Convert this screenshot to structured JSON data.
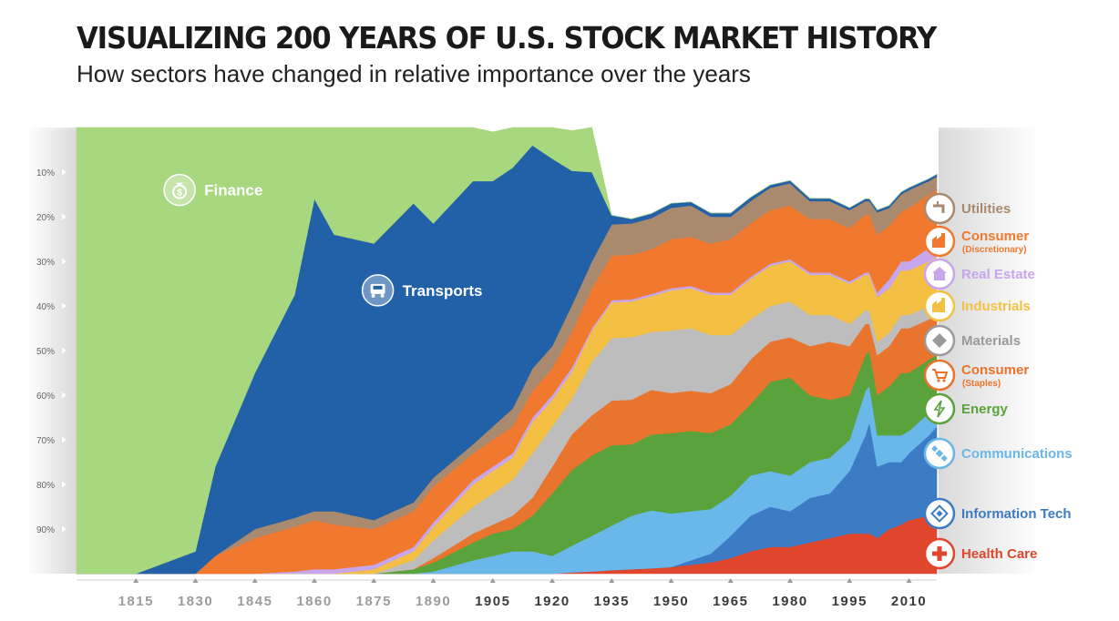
{
  "title": "VISUALIZING 200 YEARS OF U.S. STOCK MARKET HISTORY",
  "subtitle": "How sectors have changed in relative importance over the years",
  "chart_data": {
    "type": "area",
    "stacking": "100% stacked, bottom-to-top",
    "xlim": [
      1800,
      2017
    ],
    "ylim": [
      0,
      100
    ],
    "y_ticks": [
      "90%",
      "80%",
      "70%",
      "60%",
      "50%",
      "40%",
      "30%",
      "20%",
      "10%"
    ],
    "x_ticks": [
      "1815",
      "1830",
      "1845",
      "1860",
      "1875",
      "1890",
      "1905",
      "1920",
      "1935",
      "1950",
      "1965",
      "1980",
      "1995",
      "2010"
    ],
    "x": [
      1800,
      1815,
      1830,
      1835,
      1845,
      1855,
      1860,
      1865,
      1875,
      1885,
      1890,
      1900,
      1905,
      1910,
      1915,
      1920,
      1925,
      1930,
      1935,
      1940,
      1945,
      1950,
      1955,
      1960,
      1965,
      1970,
      1975,
      1980,
      1985,
      1990,
      1995,
      1999,
      2000,
      2002,
      2005,
      2008,
      2010,
      2015,
      2017
    ],
    "series": [
      {
        "name": "Health Care",
        "color": "#e0462c",
        "values": [
          0,
          0,
          0,
          0,
          0,
          0,
          0,
          0,
          0,
          0,
          0,
          0,
          0,
          0,
          0,
          0,
          0.3,
          0.5,
          0.8,
          1,
          1.2,
          1.5,
          2,
          2.5,
          3.5,
          5,
          6,
          6,
          7,
          8,
          9,
          9,
          9,
          8,
          10,
          11,
          12,
          13,
          14
        ]
      },
      {
        "name": "Information Tech",
        "color": "#3d7bc4",
        "values": [
          0,
          0,
          0,
          0,
          0,
          0,
          0,
          0,
          0,
          0,
          0,
          0,
          0,
          0,
          0,
          0,
          0,
          0,
          0,
          0,
          0,
          0,
          1,
          2,
          5,
          8,
          9,
          8,
          10,
          10,
          14,
          22,
          25,
          16,
          15,
          14,
          15,
          18,
          19
        ]
      },
      {
        "name": "Communications",
        "color": "#6ab7ea",
        "values": [
          0,
          0,
          0,
          0,
          0,
          0,
          0,
          0,
          0,
          0,
          0.5,
          3,
          4,
          5,
          5,
          4,
          6,
          8,
          10,
          12,
          13,
          12,
          11,
          10,
          9,
          9,
          8,
          8,
          8,
          8,
          7,
          10,
          8,
          7,
          6,
          6,
          5,
          5,
          5
        ]
      },
      {
        "name": "Energy",
        "color": "#5aa33c",
        "values": [
          0,
          0,
          0,
          0,
          0,
          0,
          0,
          0,
          0,
          1,
          2,
          4,
          5,
          5,
          8,
          14,
          17,
          18,
          18,
          16,
          17,
          18,
          18,
          17,
          16,
          16,
          20,
          22,
          15,
          13,
          10,
          8,
          8,
          9,
          11,
          14,
          13,
          12,
          11
        ]
      },
      {
        "name": "Consumer (Staples)",
        "color": "#e9742d",
        "values": [
          0,
          0,
          0,
          0,
          0,
          0,
          0,
          0,
          0,
          0,
          1,
          2,
          2,
          3,
          4,
          6,
          8,
          9,
          10,
          10,
          10,
          9,
          9,
          9,
          9,
          10,
          9,
          9,
          11,
          13,
          11,
          7,
          6,
          9,
          9,
          10,
          10,
          9,
          9
        ]
      },
      {
        "name": "Materials",
        "color": "#bdbdbd",
        "values": [
          0,
          0,
          0,
          0,
          0,
          0,
          0,
          0,
          0,
          2,
          4,
          6,
          7,
          8,
          10,
          9,
          8,
          12,
          14,
          14,
          13,
          14,
          14,
          13,
          11,
          9,
          8,
          8,
          7,
          6,
          5,
          3,
          3,
          3,
          3,
          3,
          3,
          3,
          3
        ]
      },
      {
        "name": "Industrials",
        "color": "#f4c043",
        "values": [
          0,
          0,
          0,
          0,
          0,
          0,
          0,
          0,
          1,
          2,
          3,
          5,
          5,
          5,
          7,
          6,
          6,
          7,
          8,
          8,
          8,
          9,
          9,
          9,
          9,
          9,
          9,
          9,
          9,
          9,
          9,
          8,
          8,
          10,
          10,
          10,
          10,
          10,
          10
        ]
      },
      {
        "name": "Real Estate",
        "color": "#c8a6ec",
        "values": [
          0,
          0,
          0,
          0,
          0,
          0.5,
          1,
          1,
          1,
          1,
          1,
          1,
          1,
          1,
          1,
          1,
          1,
          0.5,
          0.5,
          0.5,
          0.5,
          0.5,
          0.5,
          0.5,
          0.5,
          0.5,
          0.5,
          0.5,
          0.5,
          0.5,
          0.5,
          0.5,
          0.5,
          1,
          2,
          2,
          2,
          3,
          3
        ]
      },
      {
        "name": "Consumer (Discretionary)",
        "color": "#f0792f",
        "values": [
          0,
          0,
          0,
          4,
          8,
          10,
          11,
          10,
          8,
          8,
          8,
          6,
          6,
          6,
          6,
          6,
          8,
          9,
          10,
          10,
          10,
          11,
          11,
          11,
          12,
          12,
          12,
          12,
          12,
          12,
          12,
          13,
          13,
          13,
          12,
          11,
          12,
          12,
          12
        ]
      },
      {
        "name": "Utilities",
        "color": "#a98a6e",
        "values": [
          0,
          0,
          0,
          0,
          2,
          2,
          2,
          3,
          2,
          2,
          2,
          2,
          3,
          4,
          5,
          5,
          6,
          6,
          7,
          7,
          7,
          7,
          7,
          6,
          5,
          5,
          5,
          5,
          4,
          4,
          4,
          3,
          3,
          5,
          4,
          4,
          4,
          3,
          3
        ]
      },
      {
        "name": "Transports",
        "color": "#2260a8",
        "values": [
          0,
          0,
          5,
          20,
          35,
          50,
          70,
          62,
          62,
          67,
          57,
          59,
          55,
          54,
          50,
          42,
          30,
          20,
          2,
          1,
          1,
          1,
          0.8,
          0.8,
          0.8,
          0.8,
          0.6,
          0.6,
          0.6,
          0.6,
          0.5,
          0.5,
          0.5,
          0.5,
          0.5,
          0.5,
          0.5,
          0.5,
          0.5
        ]
      },
      {
        "name": "Finance",
        "color": "#a7d77e",
        "values": [
          100,
          100,
          95,
          76,
          55,
          37.5,
          16,
          24,
          26,
          17,
          21.5,
          12,
          11,
          9,
          4,
          7,
          9,
          10,
          0,
          0,
          0,
          0,
          0,
          0,
          0,
          0,
          0,
          0,
          0,
          0,
          0,
          0,
          0,
          0,
          0,
          0,
          0,
          0,
          0
        ]
      }
    ],
    "area_labels": [
      {
        "name": "Finance",
        "x": 1826,
        "y": 86,
        "icon": "money-bag-icon"
      },
      {
        "name": "Transports",
        "x": 1876,
        "y": 63.5,
        "icon": "train-icon"
      }
    ],
    "legend_placement": "right",
    "legend": [
      {
        "label": "Utilities",
        "sub": "",
        "color": "#a98a6e",
        "icon": "faucet-icon"
      },
      {
        "label": "Consumer",
        "sub": "(Discretionary)",
        "color": "#f0792f",
        "icon": "factory-icon"
      },
      {
        "label": "Real Estate",
        "sub": "",
        "color": "#c8a6ec",
        "icon": "building-icon"
      },
      {
        "label": "Industrials",
        "sub": "",
        "color": "#f4c043",
        "icon": "factory-icon"
      },
      {
        "label": "Materials",
        "sub": "",
        "color": "#9a9a9a",
        "icon": "diamond-icon"
      },
      {
        "label": "Consumer",
        "sub": "(Staples)",
        "color": "#e9742d",
        "icon": "cart-icon"
      },
      {
        "label": "Energy",
        "sub": "",
        "color": "#5aa33c",
        "icon": "bolt-icon"
      },
      {
        "label": "Communications",
        "sub": "",
        "color": "#6ab7ea",
        "icon": "satellite-icon"
      },
      {
        "label": "Information Tech",
        "sub": "",
        "color": "#3d7bc4",
        "icon": "chip-icon"
      },
      {
        "label": "Health Care",
        "sub": "",
        "color": "#e0462c",
        "icon": "cross-icon"
      }
    ]
  }
}
